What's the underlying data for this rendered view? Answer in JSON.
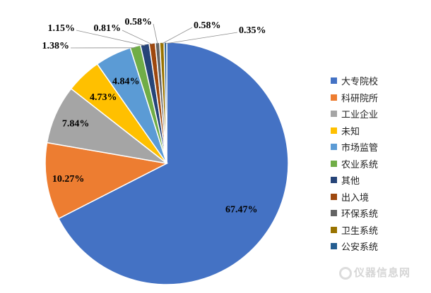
{
  "chart_data": {
    "type": "pie",
    "title": "",
    "categories": [
      "大专院校",
      "科研院所",
      "工业企业",
      "未知",
      "市场监管",
      "农业系统",
      "其他",
      "出入境",
      "环保系统",
      "卫生系统",
      "公安系统"
    ],
    "values": [
      67.47,
      10.27,
      7.84,
      4.73,
      4.84,
      1.38,
      1.15,
      0.81,
      0.58,
      0.58,
      0.35
    ],
    "labels": [
      "67.47%",
      "10.27%",
      "7.84%",
      "4.73%",
      "4.84%",
      "1.38%",
      "1.15%",
      "0.81%",
      "0.58%",
      "0.58%",
      "0.35%"
    ],
    "colors": [
      "#4472C4",
      "#ED7D31",
      "#A5A5A5",
      "#FFC000",
      "#5B9BD5",
      "#70AD47",
      "#264478",
      "#9E480E",
      "#636363",
      "#997300",
      "#255E91"
    ],
    "legend_position": "right",
    "start_angle_deg": 0,
    "direction": "clockwise"
  },
  "watermark": {
    "text": "仪器信息网",
    "icon": "instrument-logo-icon"
  }
}
